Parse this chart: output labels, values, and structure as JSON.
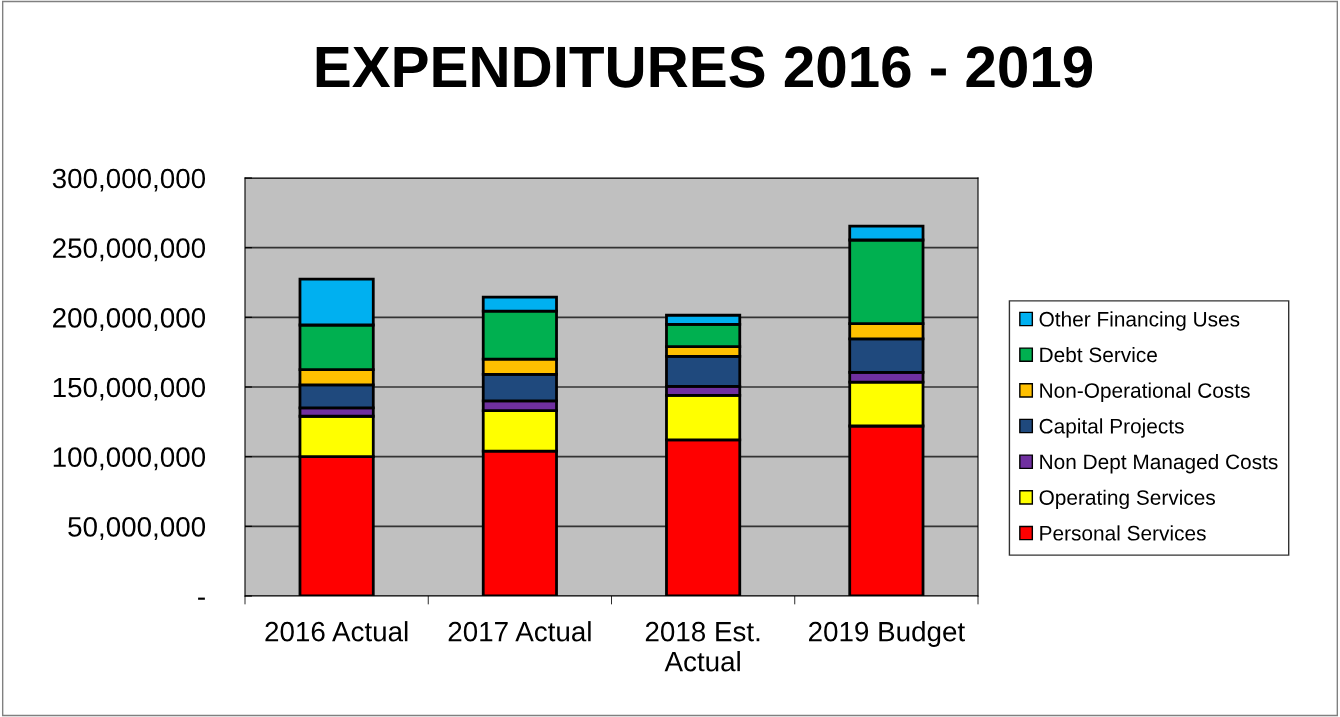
{
  "chart_data": {
    "type": "bar",
    "title": "EXPENDITURES 2016 - 2019",
    "stacked": true,
    "categories": [
      "2016 Actual",
      "2017 Actual",
      "2018 Est. Actual",
      "2019 Budget"
    ],
    "series": [
      {
        "name": "Personal Services",
        "color": "#ff0000",
        "values": [
          100000000,
          104000000,
          112000000,
          122000000
        ]
      },
      {
        "name": "Operating Services",
        "color": "#ffff00",
        "values": [
          29000000,
          29000000,
          32000000,
          31500000
        ]
      },
      {
        "name": "Non Dept Managed Costs",
        "color": "#7030a0",
        "values": [
          6000000,
          7000000,
          6500000,
          7000000
        ]
      },
      {
        "name": "Capital Projects",
        "color": "#1f497d",
        "values": [
          16500000,
          19000000,
          21500000,
          24000000
        ]
      },
      {
        "name": "Non-Operational Costs",
        "color": "#ffc000",
        "values": [
          11000000,
          11000000,
          7000000,
          11000000
        ]
      },
      {
        "name": "Debt Service",
        "color": "#00b050",
        "values": [
          32000000,
          34500000,
          16000000,
          60000000
        ]
      },
      {
        "name": "Other Financing Uses",
        "color": "#00b0f0",
        "values": [
          33000000,
          10000000,
          6500000,
          10000000
        ]
      }
    ],
    "ylim": [
      0,
      300000000
    ],
    "yticks": [
      {
        "value": 0,
        "label": "-"
      },
      {
        "value": 50000000,
        "label": "50,000,000"
      },
      {
        "value": 100000000,
        "label": "100,000,000"
      },
      {
        "value": 150000000,
        "label": "150,000,000"
      },
      {
        "value": 200000000,
        "label": "200,000,000"
      },
      {
        "value": 250000000,
        "label": "250,000,000"
      },
      {
        "value": 300000000,
        "label": "300,000,000"
      }
    ],
    "grid": "y",
    "legend": "right"
  }
}
